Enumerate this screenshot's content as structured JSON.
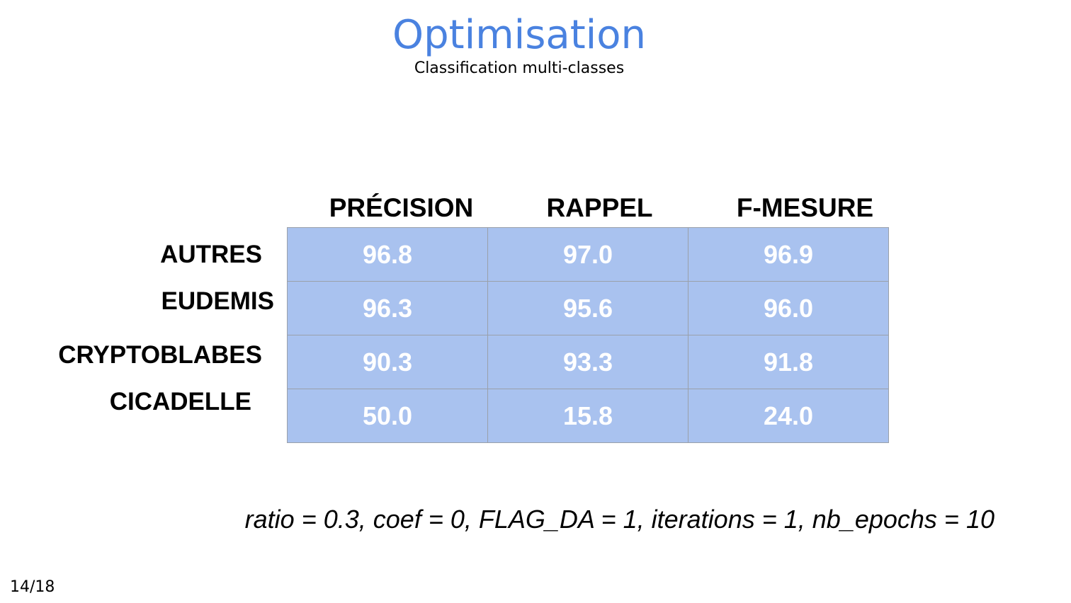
{
  "slide": {
    "title": "Optimisation",
    "subtitle": "Classification multi-classes",
    "page_number": "14/18",
    "params": "ratio = 0.3, coef = 0, FLAG_DA = 1, iterations = 1, nb_epochs = 10"
  },
  "table": {
    "columns": [
      "PRÉCISION",
      "RAPPEL",
      "F-MESURE"
    ],
    "rows": [
      {
        "label": "AUTRES",
        "values": [
          "96.8",
          "97.0",
          "96.9"
        ]
      },
      {
        "label": "EUDEMIS",
        "values": [
          "96.3",
          "95.6",
          "96.0"
        ]
      },
      {
        "label": "CRYPTOBLABES",
        "values": [
          "90.3",
          "93.3",
          "91.8"
        ]
      },
      {
        "label": "CICADELLE",
        "values": [
          "50.0",
          "15.8",
          "24.0"
        ]
      }
    ]
  },
  "colors": {
    "title": "#4a82e0",
    "cell_fill": "#a9c2ef",
    "cell_text": "#ffffff",
    "grid_line": "#9aa0aa"
  }
}
